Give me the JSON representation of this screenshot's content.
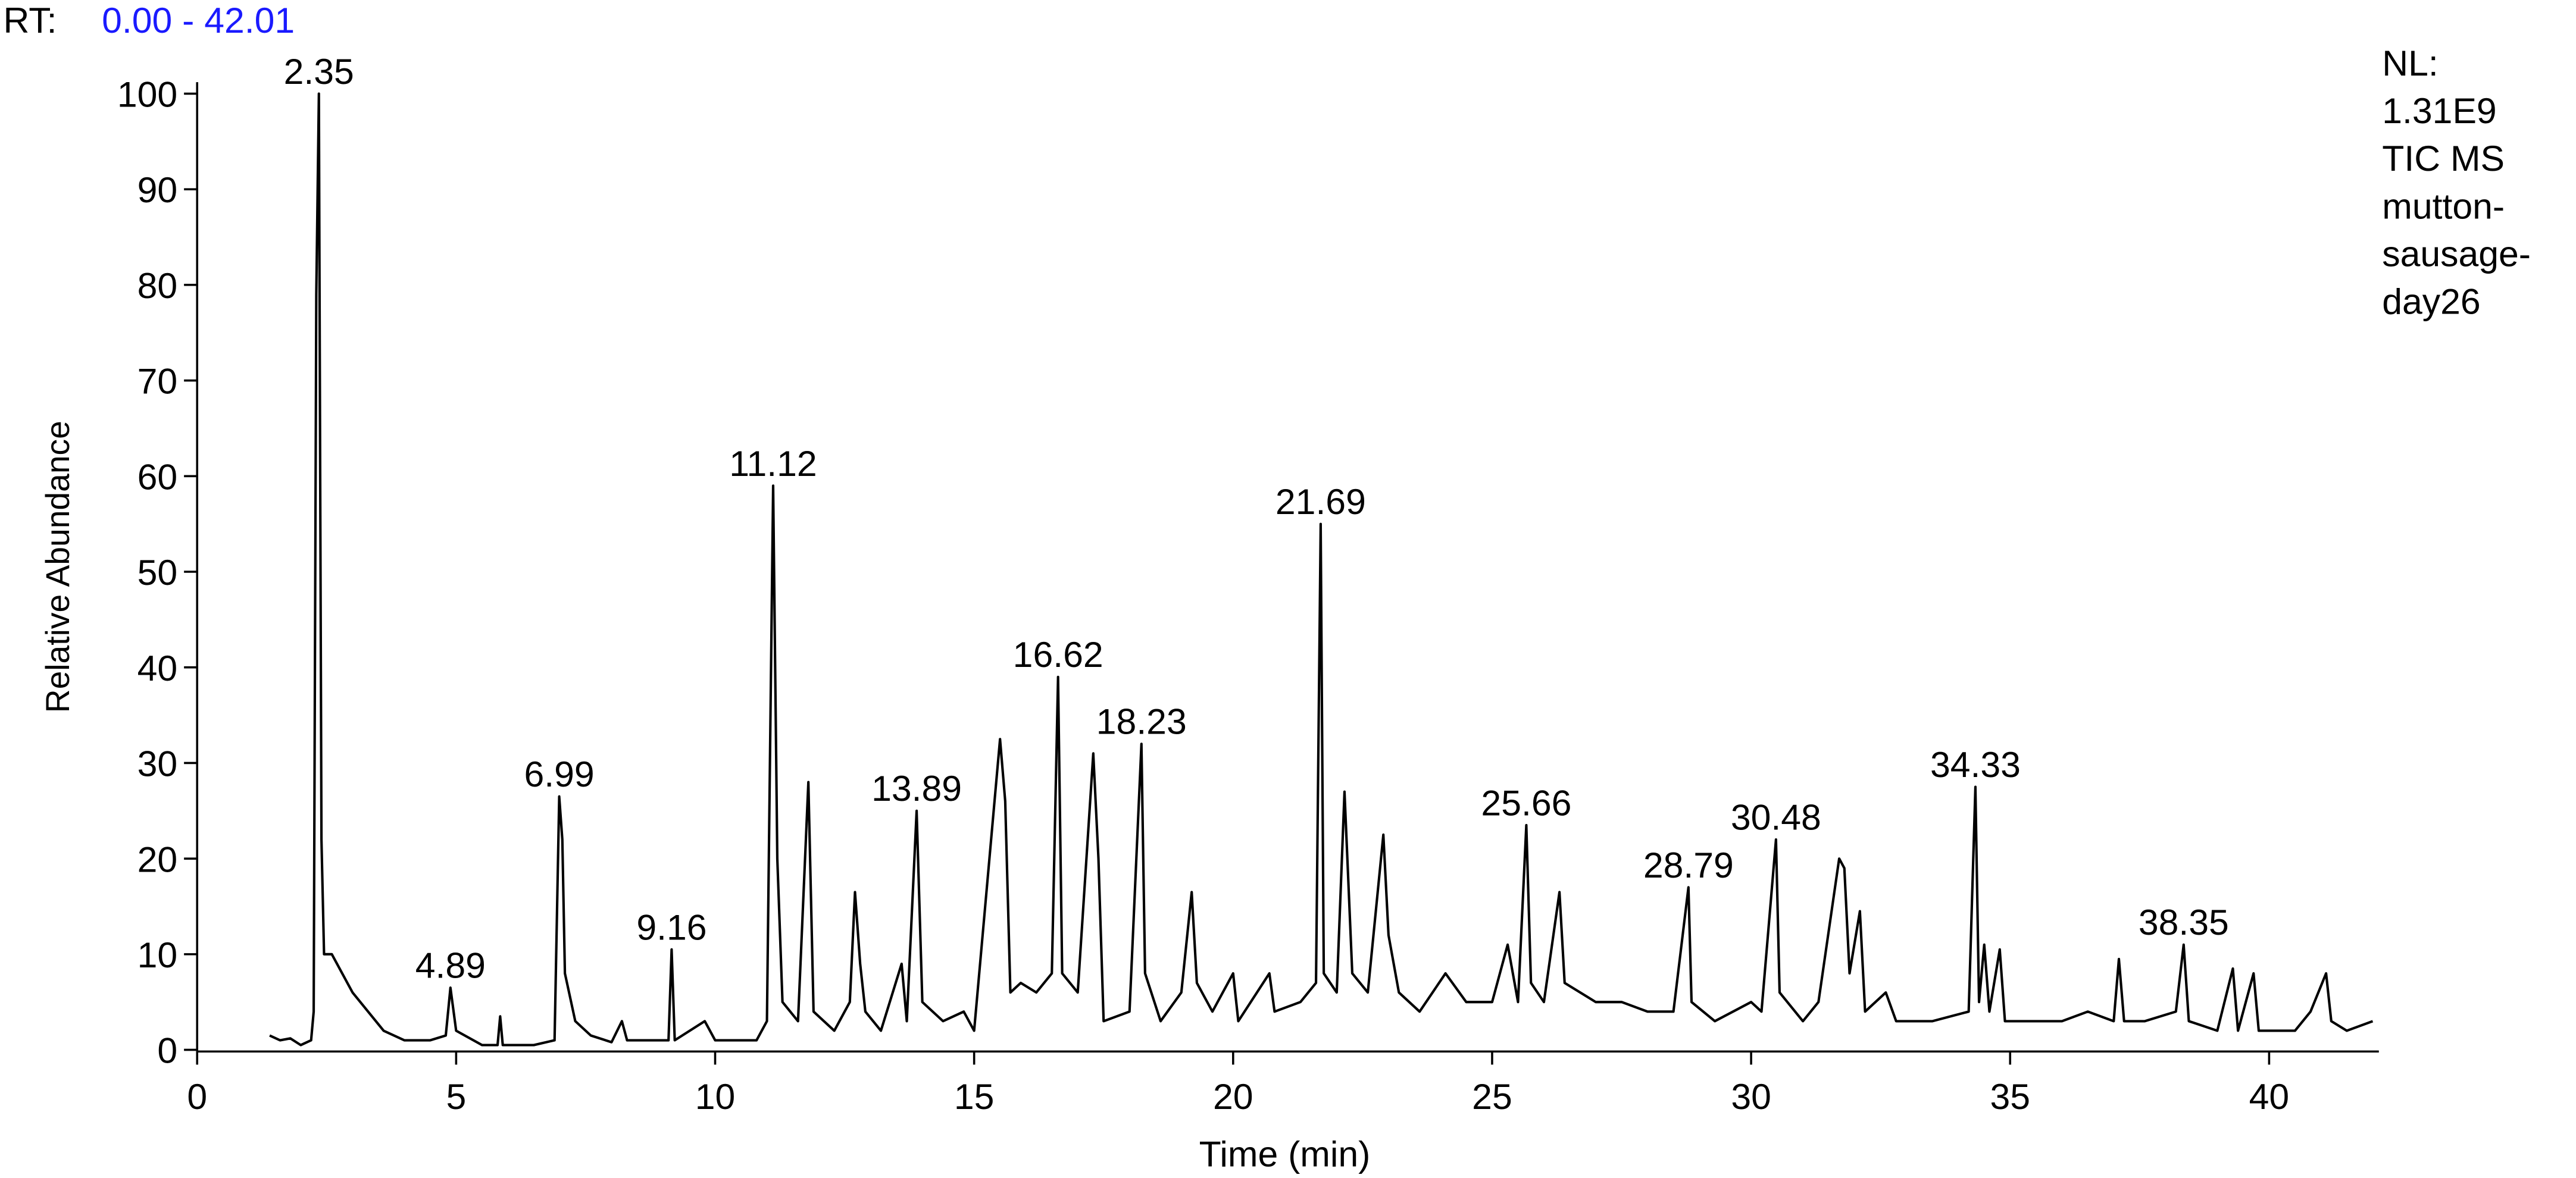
{
  "chart_data": {
    "type": "line",
    "range_prefix": "RT:",
    "range_text": "0.00 - 42.01",
    "info": [
      "NL:",
      "1.31E9",
      "TIC  MS",
      "mutton-",
      "sausage-",
      "day26"
    ],
    "xlabel": "Time (min)",
    "ylabel": "Relative Abundance",
    "xlim": [
      0,
      42.01
    ],
    "xticks": [
      0,
      5,
      10,
      15,
      20,
      25,
      30,
      35,
      40
    ],
    "ylim": [
      0,
      100
    ],
    "yticks": [
      0,
      10,
      20,
      30,
      40,
      50,
      60,
      70,
      80,
      90,
      100
    ],
    "color": "#000000",
    "x": [
      1.4,
      1.6,
      1.8,
      2.0,
      2.2,
      2.25,
      2.3,
      2.35,
      2.4,
      2.45,
      2.6,
      2.8,
      3.0,
      3.3,
      3.6,
      4.0,
      4.5,
      4.8,
      4.89,
      5.0,
      5.5,
      5.8,
      5.85,
      5.9,
      6.5,
      6.9,
      6.99,
      7.05,
      7.1,
      7.3,
      7.6,
      8.0,
      8.2,
      8.3,
      8.5,
      9.1,
      9.16,
      9.22,
      9.8,
      10.0,
      10.8,
      11.0,
      11.12,
      11.2,
      11.3,
      11.6,
      11.8,
      11.9,
      12.3,
      12.6,
      12.7,
      12.8,
      12.9,
      13.2,
      13.6,
      13.7,
      13.89,
      14.0,
      14.4,
      14.8,
      15.0,
      15.5,
      15.6,
      15.7,
      15.9,
      16.2,
      16.5,
      16.62,
      16.7,
      17.0,
      17.3,
      17.4,
      17.5,
      18.0,
      18.23,
      18.3,
      18.6,
      19.0,
      19.2,
      19.3,
      19.6,
      20.0,
      20.1,
      20.7,
      20.8,
      21.3,
      21.6,
      21.69,
      21.75,
      22.0,
      22.15,
      22.3,
      22.6,
      22.9,
      23.0,
      23.2,
      23.6,
      24.1,
      24.5,
      25.0,
      25.3,
      25.5,
      25.66,
      25.75,
      26.0,
      26.3,
      26.4,
      27.0,
      27.5,
      28.0,
      28.5,
      28.79,
      28.85,
      29.3,
      30.0,
      30.2,
      30.48,
      30.55,
      31.0,
      31.3,
      31.7,
      31.8,
      31.9,
      32.1,
      32.2,
      32.6,
      32.8,
      33.5,
      34.2,
      34.33,
      34.4,
      34.5,
      34.6,
      34.8,
      34.9,
      35.5,
      36.0,
      36.5,
      37.0,
      37.1,
      37.2,
      37.6,
      38.2,
      38.35,
      38.45,
      39.0,
      39.3,
      39.4,
      39.7,
      39.8,
      40.5,
      40.8,
      41.1,
      41.2,
      41.5,
      42.0
    ],
    "values": [
      1.5,
      1,
      1.2,
      0.5,
      1,
      4,
      79,
      100,
      22,
      10,
      10,
      8,
      6,
      4,
      2,
      1,
      1,
      1.5,
      6.5,
      2,
      0.5,
      0.5,
      3.5,
      0.5,
      0.5,
      1,
      26.5,
      22,
      8,
      3,
      1.5,
      0.8,
      3,
      1,
      1,
      1,
      10.5,
      1,
      3,
      1,
      1,
      3,
      59,
      20,
      5,
      3,
      28,
      4,
      2,
      5,
      16.5,
      9,
      4,
      2,
      9,
      3,
      25,
      5,
      3,
      4,
      2,
      32.5,
      26,
      6,
      7,
      6,
      8,
      39,
      8,
      6,
      31,
      20,
      3,
      4,
      32,
      8,
      3,
      6,
      16.5,
      7,
      4,
      8,
      3,
      8,
      4,
      5,
      7,
      55,
      8,
      6,
      27,
      8,
      6,
      22.5,
      12,
      6,
      4,
      8,
      5,
      5,
      11,
      5,
      23.5,
      7,
      5,
      16.5,
      7,
      5,
      5,
      4,
      4,
      17,
      5,
      3,
      5,
      4,
      22,
      6,
      3,
      5,
      20,
      19,
      8,
      14.5,
      4,
      6,
      3,
      3,
      4,
      27.5,
      5,
      11,
      4,
      10.5,
      3,
      3,
      3,
      4,
      3,
      9.5,
      3,
      3,
      4,
      11,
      3,
      2,
      8.5,
      2,
      8,
      2,
      2,
      4,
      8,
      3,
      2,
      3
    ],
    "annotations": [
      {
        "x": 2.35,
        "y": 100
      },
      {
        "x": 4.89,
        "y": 6.5
      },
      {
        "x": 6.99,
        "y": 26.5
      },
      {
        "x": 9.16,
        "y": 10.5
      },
      {
        "x": 11.12,
        "y": 59
      },
      {
        "x": 13.89,
        "y": 25
      },
      {
        "x": 16.62,
        "y": 39
      },
      {
        "x": 18.23,
        "y": 32
      },
      {
        "x": 21.69,
        "y": 55
      },
      {
        "x": 25.66,
        "y": 23.5
      },
      {
        "x": 28.79,
        "y": 17
      },
      {
        "x": 30.48,
        "y": 22
      },
      {
        "x": 34.33,
        "y": 27.5
      },
      {
        "x": 38.35,
        "y": 11
      }
    ]
  }
}
